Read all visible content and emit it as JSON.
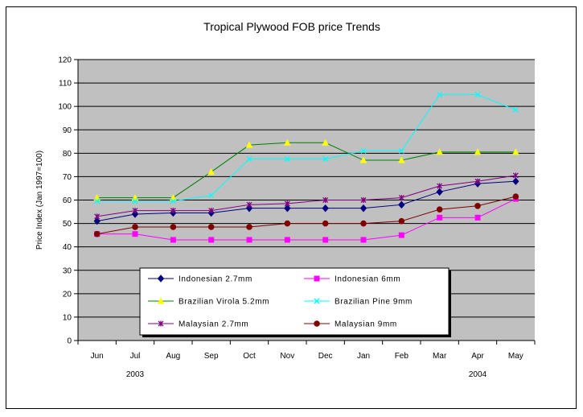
{
  "chart_data": {
    "type": "line",
    "title": "Tropical Plywood FOB price Trends",
    "ylabel": "Price Index (Jan 1997=100)",
    "xlabel": "",
    "ylim": [
      0,
      120
    ],
    "yticks": [
      0,
      10,
      20,
      30,
      40,
      50,
      60,
      70,
      80,
      90,
      100,
      110,
      120
    ],
    "categories": [
      "Jun",
      "Jul",
      "Aug",
      "Sep",
      "Oct",
      "Nov",
      "Dec",
      "Jan",
      "Feb",
      "Mar",
      "Apr",
      "May"
    ],
    "year_labels": [
      {
        "label": "2003",
        "category": "Jul"
      },
      {
        "label": "2004",
        "category": "Apr"
      }
    ],
    "grid": "horizontal",
    "background": "#c0c0c0",
    "legend_position": "lower-center",
    "series": [
      {
        "name": "Indonesian 2.7mm",
        "color": "#000080",
        "marker": "diamond",
        "values": [
          51,
          54,
          54.5,
          54.5,
          56.5,
          56.5,
          56.5,
          56.5,
          58,
          63.5,
          67,
          68
        ]
      },
      {
        "name": "Indonesian 6mm",
        "color": "#ff00ff",
        "marker": "square",
        "values": [
          45.5,
          45.5,
          43,
          43,
          43,
          43,
          43,
          43,
          45,
          52.5,
          52.5,
          60.5
        ]
      },
      {
        "name": "Brazilian Virola 5.2mm",
        "color": "#008000",
        "marker": "triangle",
        "marker_color": "#ffff00",
        "values": [
          61,
          61,
          61,
          72,
          83.5,
          84.5,
          84.5,
          77,
          77,
          80.5,
          80.5,
          80.5
        ]
      },
      {
        "name": "Brazilian Pine 9mm",
        "color": "#00ffff",
        "marker": "x",
        "values": [
          59.5,
          59.5,
          59.5,
          62,
          77.5,
          77.5,
          77.5,
          81,
          81,
          105,
          105,
          98.5
        ]
      },
      {
        "name": "Malaysian 2.7mm",
        "color": "#800080",
        "marker": "star",
        "values": [
          53,
          55.5,
          55.5,
          55.5,
          58,
          58.5,
          60,
          60,
          61,
          66,
          68,
          70.5
        ]
      },
      {
        "name": "Malaysian 9mm",
        "color": "#800000",
        "marker": "circle",
        "values": [
          45.5,
          48.5,
          48.5,
          48.5,
          48.5,
          50,
          50,
          50,
          51,
          56,
          57.5,
          61.5
        ]
      }
    ]
  }
}
